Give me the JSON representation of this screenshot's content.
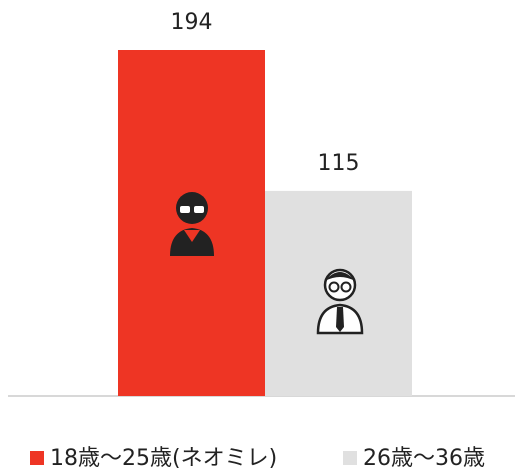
{
  "chart_data": {
    "type": "bar",
    "series": [
      {
        "name": "18歳〜25歳(ネオミレ)",
        "color": "#ee3524",
        "values": [
          194
        ]
      },
      {
        "name": "26歳〜36歳",
        "color": "#e0e0e0",
        "values": [
          115
        ]
      }
    ]
  }
}
